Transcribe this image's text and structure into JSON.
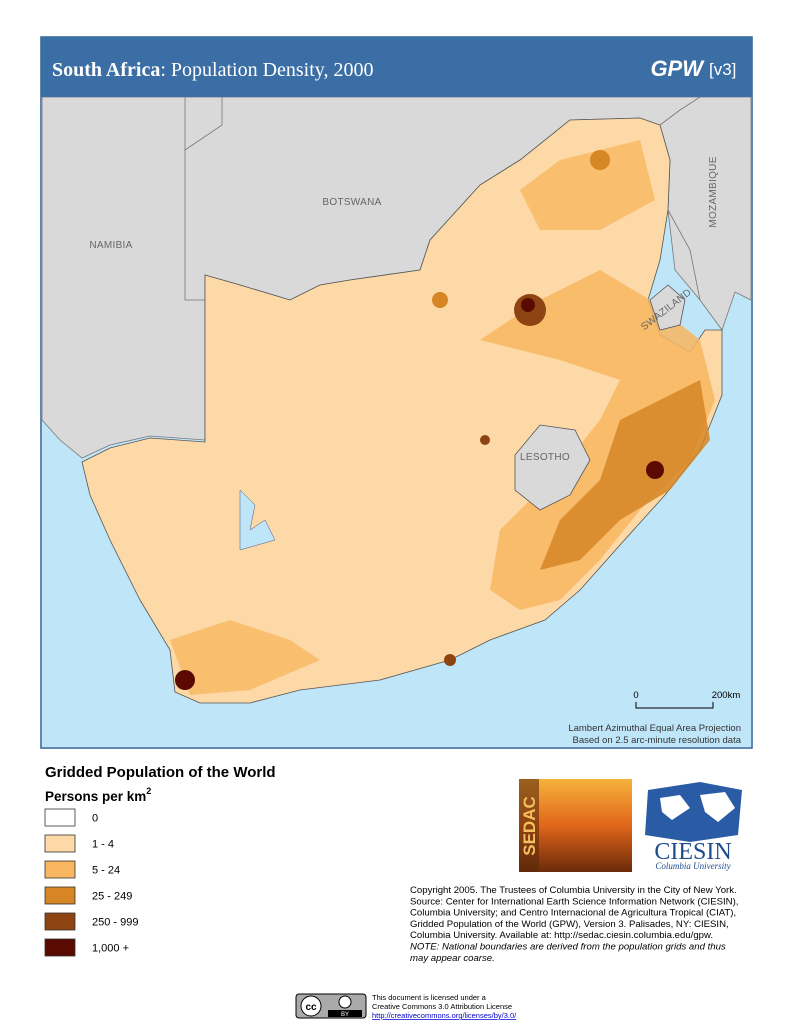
{
  "header": {
    "title": "South Africa",
    "subtitle": ": Population Density, 2000",
    "brand": "GPW",
    "version": "[v3]"
  },
  "map": {
    "labels": [
      "NAMIBIA",
      "BOTSWANA",
      "MOZAMBIQUE",
      "SWAZILAND",
      "LESOTHO"
    ],
    "scale": {
      "start": "0",
      "end": "200km"
    },
    "projection": "Lambert Azimuthal Equal Area Projection",
    "resolution": "Based on 2.5 arc-minute resolution data"
  },
  "legend": {
    "title": "Gridded Population of the World",
    "unit": "Persons per km",
    "unit_superscript": "2",
    "items": [
      {
        "label": "0",
        "color": "#ffffff"
      },
      {
        "label": "1 - 4",
        "color": "#fdd9a7"
      },
      {
        "label": "5 - 24",
        "color": "#f8b660"
      },
      {
        "label": "25 - 249",
        "color": "#d68625"
      },
      {
        "label": "250 - 999",
        "color": "#8e4312"
      },
      {
        "label": "1,000 +",
        "color": "#5a0a00"
      }
    ]
  },
  "logos": {
    "sedac": "SEDAC",
    "ciesin": "CIESIN",
    "ciesin_sub": "Columbia University"
  },
  "copyright": [
    "Copyright 2005. The Trustees of Columbia University in the City of New York.",
    "Source: Center for International Earth Science Information Network (CIESIN),",
    "Columbia University; and Centro Internacional de Agricultura Tropical (CIAT),",
    "Gridded Population of the World (GPW),  Version 3.  Palisades, NY: CIESIN,",
    "Columbia University.   Available at:    http://sedac.ciesin.columbia.edu/gpw."
  ],
  "note": [
    "NOTE: National boundaries are derived from the population grids and thus",
    "may appear coarse."
  ],
  "license": {
    "badge": "cc",
    "badge_by": "BY",
    "lines": [
      "This document is licensed under a",
      "Creative Commons 3.0 Attribution License",
      "http://creativecommons.org/licenses/by/3.0/"
    ]
  }
}
